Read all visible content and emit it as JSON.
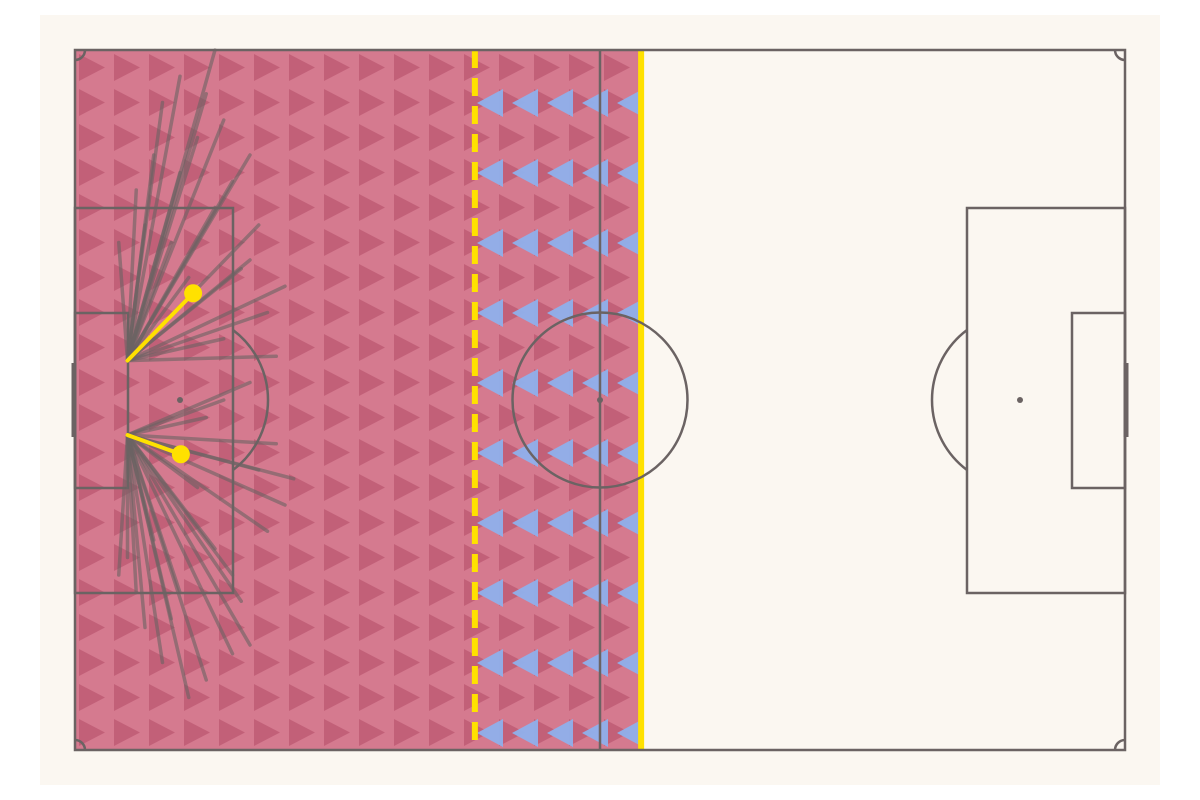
{
  "pitch": {
    "length": 120,
    "width": 80,
    "zone": {
      "x_start": 0,
      "x_end": 64.7,
      "color": "#c8506e"
    },
    "dashed_line_x": 45.7,
    "solid_line_x": 64.7,
    "line_color": "#ffe100",
    "passes": {
      "color": "#6b6363",
      "items": [
        [
          6,
          35.5,
          16,
          0
        ],
        [
          6,
          35.5,
          15,
          5
        ],
        [
          6,
          35.5,
          14,
          10
        ],
        [
          6,
          35.5,
          20,
          12
        ],
        [
          6,
          35.5,
          17,
          8
        ],
        [
          6,
          35.5,
          12,
          3
        ],
        [
          6,
          35.5,
          10,
          6
        ],
        [
          6,
          35.5,
          18,
          15
        ],
        [
          6,
          35.5,
          21,
          20
        ],
        [
          6,
          35.5,
          24,
          27
        ],
        [
          6,
          35.5,
          22,
          30
        ],
        [
          6,
          35.5,
          16,
          18
        ],
        [
          6,
          35.5,
          9,
          12
        ],
        [
          6,
          35.5,
          8,
          20
        ],
        [
          6,
          35.5,
          11,
          22
        ],
        [
          6,
          35.5,
          19,
          25
        ],
        [
          6,
          35.5,
          13,
          26
        ],
        [
          6,
          35.5,
          5,
          22
        ],
        [
          6,
          35.5,
          23,
          35
        ],
        [
          6,
          35.5,
          17,
          33
        ],
        [
          6,
          35.5,
          20,
          24
        ],
        [
          6,
          35.5,
          7,
          16
        ],
        [
          6,
          35.5,
          12,
          14
        ],
        [
          6,
          44,
          13,
          74
        ],
        [
          6,
          44,
          15,
          72
        ],
        [
          6,
          44,
          20,
          68
        ],
        [
          6,
          44,
          10,
          70
        ],
        [
          6,
          44,
          8,
          66
        ],
        [
          6,
          44,
          18,
          60
        ],
        [
          6,
          44,
          24,
          52
        ],
        [
          6,
          44,
          22,
          55
        ],
        [
          6,
          44,
          19,
          63
        ],
        [
          6,
          44,
          12,
          62
        ],
        [
          6,
          44,
          6,
          58
        ],
        [
          6,
          44,
          9,
          56
        ],
        [
          6,
          44,
          16,
          57
        ],
        [
          6,
          44,
          21,
          48
        ],
        [
          6,
          44,
          14,
          50
        ],
        [
          6,
          44,
          23,
          45
        ],
        [
          6,
          44,
          17,
          40
        ],
        [
          6,
          44,
          11,
          65
        ],
        [
          6,
          44,
          5,
          60
        ],
        [
          6,
          44,
          25,
          49
        ],
        [
          6,
          44,
          20,
          38
        ],
        [
          6,
          44,
          15,
          42
        ],
        [
          6,
          44,
          7,
          62
        ],
        [
          6,
          44,
          18,
          69
        ]
      ]
    },
    "highlight": {
      "color": "#ffe100",
      "items": [
        [
          6,
          35.5,
          13.5,
          27.8
        ],
        [
          6,
          44,
          12.1,
          46.2
        ]
      ]
    }
  }
}
